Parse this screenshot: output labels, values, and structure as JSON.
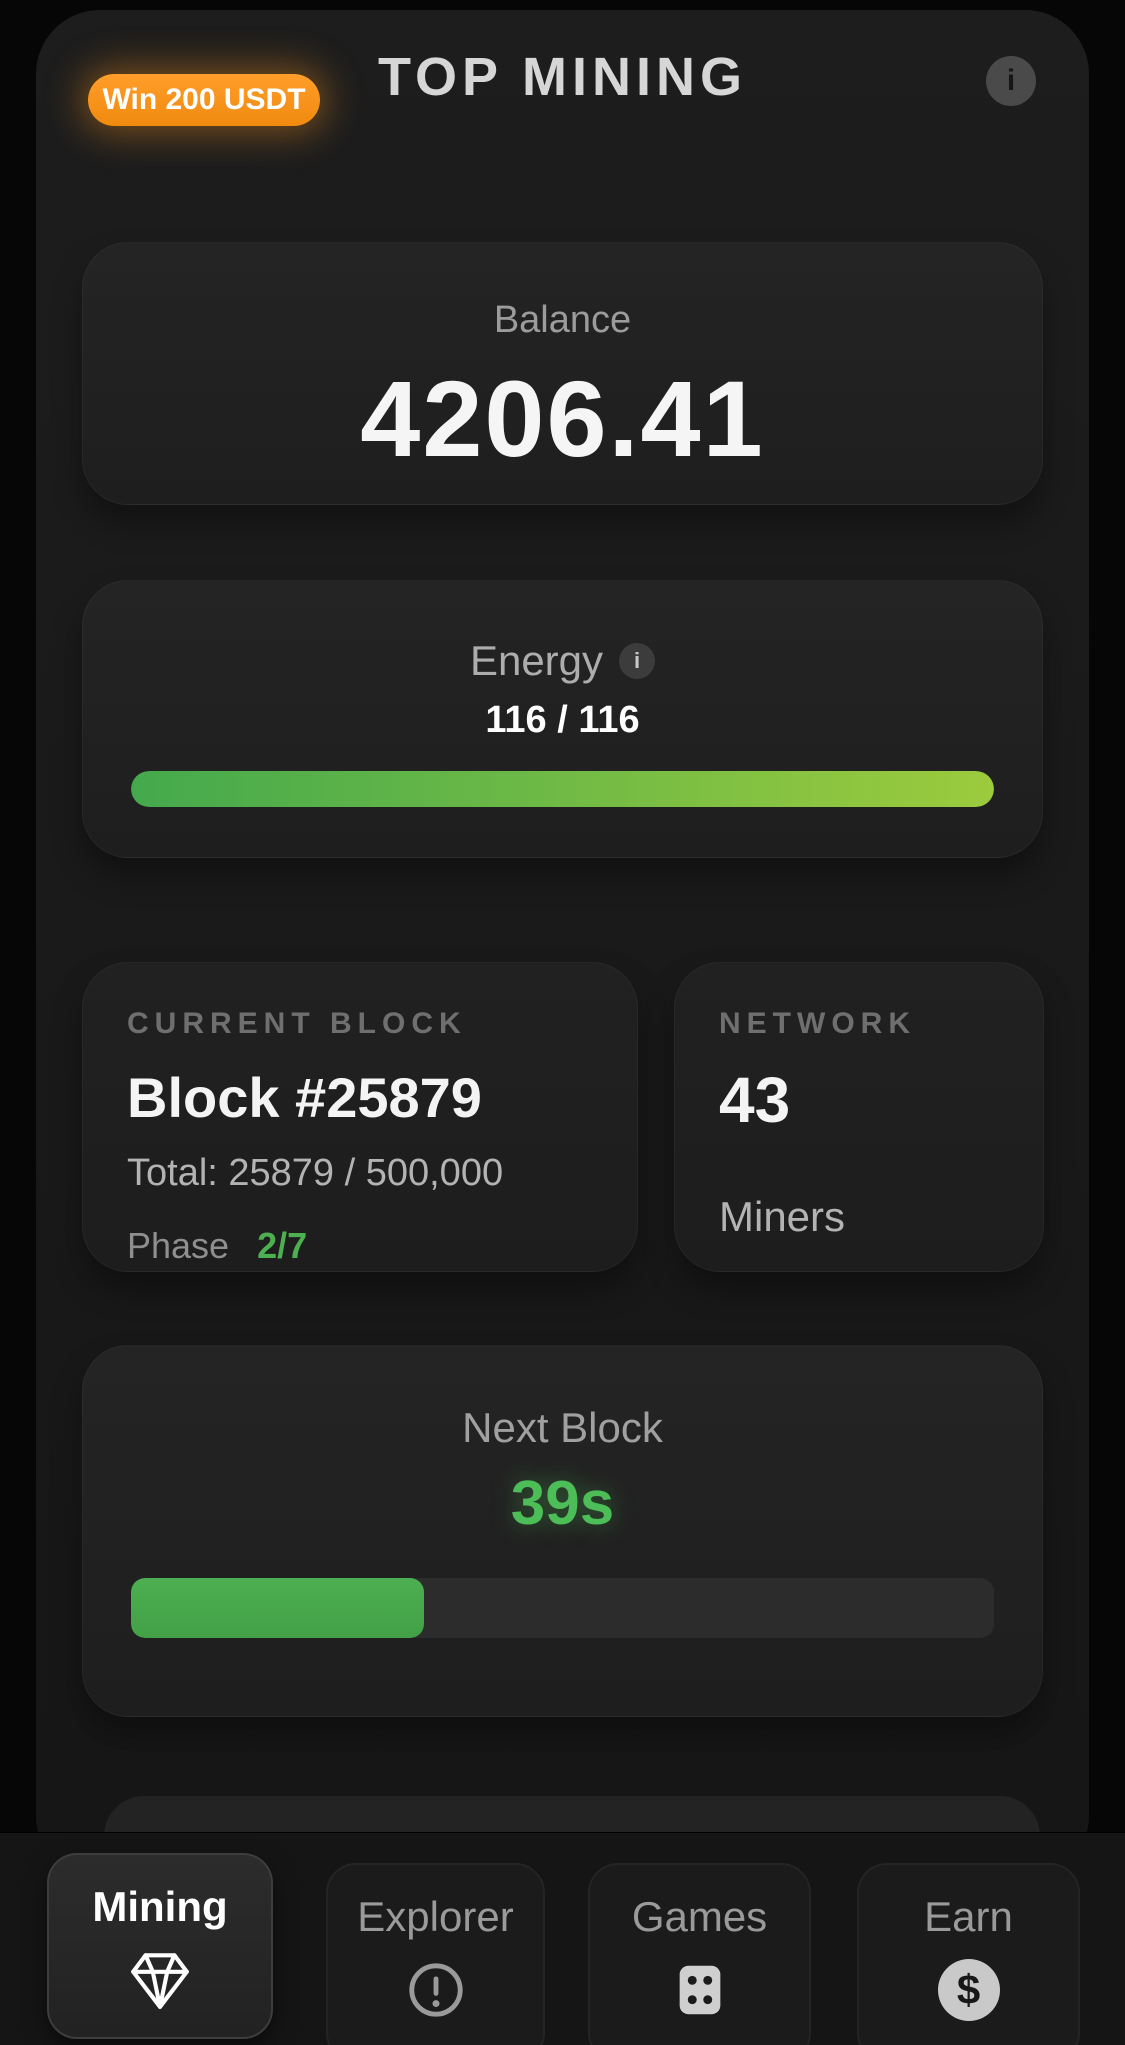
{
  "header": {
    "badge": "Win 200 USDT",
    "title": "TOP MINING",
    "info_glyph": "i"
  },
  "balance": {
    "label": "Balance",
    "value": "4206.41"
  },
  "energy": {
    "label": "Energy",
    "info_glyph": "i",
    "value": "116 / 116",
    "percent": 100
  },
  "current_block": {
    "label": "CURRENT BLOCK",
    "title": "Block #25879",
    "total": "Total: 25879 / 500,000",
    "phase_label": "Phase",
    "phase_value": "2/7"
  },
  "network": {
    "label": "NETWORK",
    "value": "43",
    "sublabel": "Miners"
  },
  "next_block": {
    "label": "Next Block",
    "countdown": "39s",
    "progress_percent": 34
  },
  "nav": {
    "items": [
      {
        "label": "Mining",
        "icon": "diamond-icon",
        "active": true
      },
      {
        "label": "Explorer",
        "icon": "alert-circle-icon",
        "active": false
      },
      {
        "label": "Games",
        "icon": "dice-icon",
        "active": false
      },
      {
        "label": "Earn",
        "icon": "dollar-icon",
        "active": false
      }
    ],
    "earn_glyph": "$"
  },
  "colors": {
    "accent_orange": "#f7941d",
    "green": "#4caf50",
    "green_light": "#9ccb3d"
  }
}
